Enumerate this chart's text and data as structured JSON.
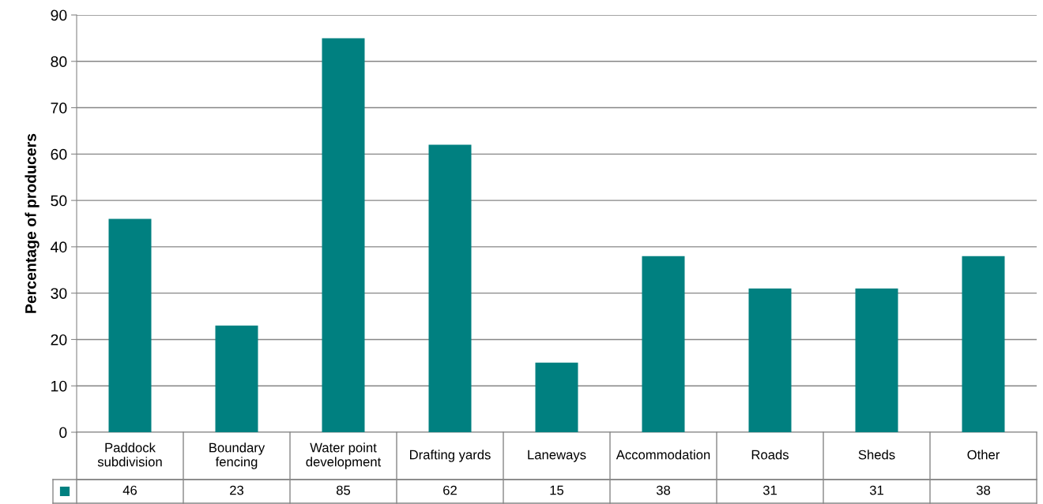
{
  "chart_data": {
    "type": "bar",
    "ylabel": "Percentage of producers",
    "categories": [
      "Paddock\nsubdivision",
      "Boundary\nfencing",
      "Water point\ndevelopment",
      "Drafting yards",
      "Laneways",
      "Accommodation",
      "Roads",
      "Sheds",
      "Other"
    ],
    "values": [
      46,
      23,
      85,
      62,
      15,
      38,
      31,
      31,
      38
    ],
    "color": "#008080",
    "ylim": [
      0,
      90
    ],
    "yticks": [
      0,
      10,
      20,
      30,
      40,
      50,
      60,
      70,
      80,
      90
    ],
    "grid": "y",
    "data_labels": true
  }
}
